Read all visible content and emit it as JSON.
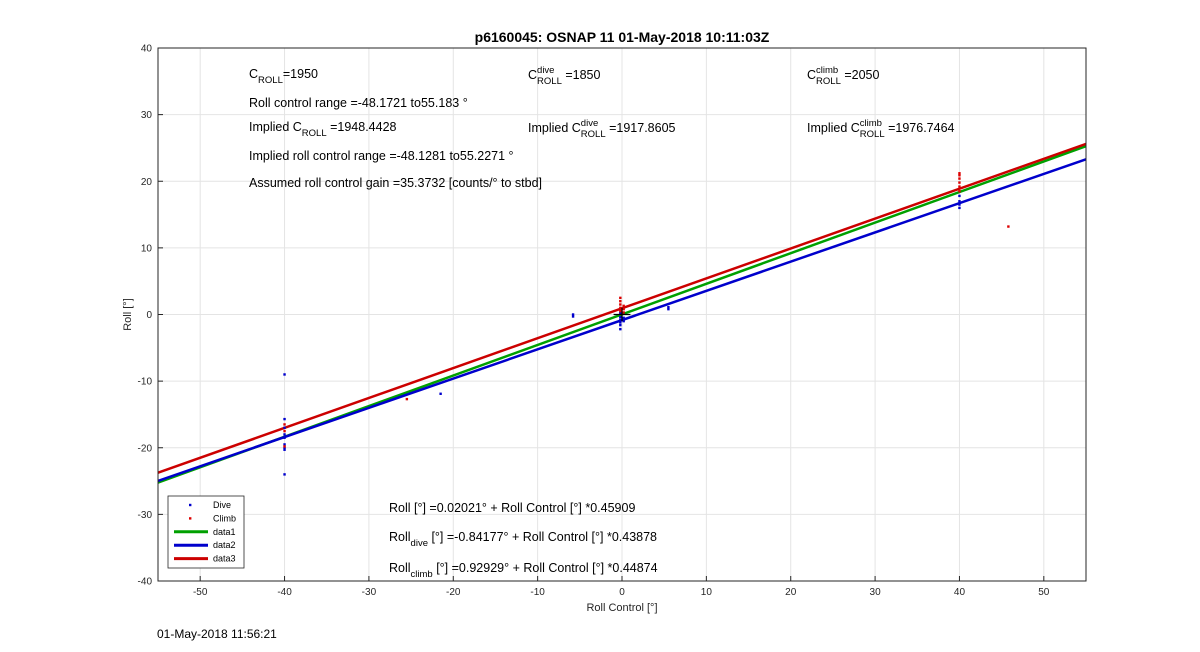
{
  "footer_timestamp": "01-May-2018 11:56:21",
  "chart_data": {
    "type": "scatter",
    "title": "p6160045: OSNAP 11 01-May-2018 10:11:03Z",
    "xlabel": "Roll Control [°]",
    "ylabel": "Roll [°]",
    "xlim": [
      -55,
      55
    ],
    "ylim": [
      -40,
      40
    ],
    "xticks": [
      -50,
      -40,
      -30,
      -20,
      -10,
      0,
      10,
      20,
      30,
      40,
      50
    ],
    "yticks": [
      -40,
      -30,
      -20,
      -10,
      0,
      10,
      20,
      30,
      40
    ],
    "grid": true,
    "legend_position": "bottom-left",
    "annotations": {
      "c_roll": {
        "base": "C",
        "sub": "ROLL",
        "value": "=1950"
      },
      "c_roll_dive": {
        "base": "C",
        "sub": "ROLL",
        "sup": "dive",
        "value": " =1850"
      },
      "c_roll_climb": {
        "base": "C",
        "sub": "ROLL",
        "sup": "climb",
        "value": " =2050"
      },
      "roll_range": "Roll control range =-48.1721 to55.183 °",
      "implied_c_roll": {
        "prefix": "Implied C",
        "sub": "ROLL",
        "value": " =1948.4428"
      },
      "implied_c_roll_dive": {
        "prefix": "Implied C",
        "sub": "ROLL",
        "sup": "dive",
        "value": " =1917.8605"
      },
      "implied_c_roll_climb": {
        "prefix": "Implied C",
        "sub": "ROLL",
        "sup": "climb",
        "value": " =1976.7464"
      },
      "implied_range": "Implied roll control range =-48.1281 to55.2271 °",
      "gain": "Assumed roll control gain =35.3732 [counts/° to stbd]",
      "eq_all": "Roll [°] =0.02021° + Roll Control [°] *0.45909",
      "eq_dive": {
        "base": "Roll",
        "sub": "dive",
        "rest": " [°] =-0.84177° + Roll Control [°] *0.43878"
      },
      "eq_climb": {
        "base": "Roll",
        "sub": "climb",
        "rest": " [°] =0.92929° + Roll Control [°] *0.44874"
      }
    },
    "series": [
      {
        "name": "Dive",
        "kind": "scatter",
        "color": "#0000cc",
        "points": [
          [
            -40,
            -9
          ],
          [
            -40,
            -15.7
          ],
          [
            -40,
            -17
          ],
          [
            -40,
            -18
          ],
          [
            -40,
            -18.5
          ],
          [
            -40,
            -19.5
          ],
          [
            -40,
            -20
          ],
          [
            -40,
            -20.3
          ],
          [
            -40,
            -24
          ],
          [
            -21.5,
            -11.9
          ],
          [
            -5.8,
            0
          ],
          [
            -5.8,
            -0.3
          ],
          [
            5.5,
            0.8
          ],
          [
            5.5,
            1.1
          ],
          [
            -0.2,
            -0.4
          ],
          [
            -0.2,
            -0.8
          ],
          [
            -0.2,
            -1.2
          ],
          [
            -0.2,
            -1.6
          ],
          [
            -0.2,
            -2.2
          ],
          [
            0.2,
            -0.5
          ],
          [
            0.2,
            -1
          ],
          [
            -0.2,
            0.2
          ],
          [
            40,
            16
          ],
          [
            40,
            16.5
          ],
          [
            40,
            17
          ],
          [
            40,
            17.8
          ]
        ]
      },
      {
        "name": "Climb",
        "kind": "scatter",
        "color": "#dd0000",
        "points": [
          [
            -40,
            -16.5
          ],
          [
            -40,
            -17.5
          ],
          [
            -40,
            -19.8
          ],
          [
            -25.5,
            -12.7
          ],
          [
            -0.2,
            0.5
          ],
          [
            -0.2,
            1
          ],
          [
            -0.2,
            1.5
          ],
          [
            -0.2,
            2
          ],
          [
            -0.2,
            2.5
          ],
          [
            0.2,
            0.8
          ],
          [
            0.2,
            1.3
          ],
          [
            0.2,
            0.3
          ],
          [
            40,
            18.5
          ],
          [
            40,
            19.2
          ],
          [
            40,
            19.8
          ],
          [
            40,
            20.4
          ],
          [
            40,
            20.9
          ],
          [
            40,
            21.2
          ],
          [
            45.8,
            13.2
          ]
        ]
      },
      {
        "name": "data1",
        "kind": "line",
        "color": "#00a000",
        "intercept": 0.02021,
        "slope": 0.45909
      },
      {
        "name": "data2",
        "kind": "line",
        "color": "#0000cc",
        "intercept": -0.84177,
        "slope": 0.43878
      },
      {
        "name": "data3",
        "kind": "line",
        "color": "#cc0000",
        "intercept": 0.92929,
        "slope": 0.44874
      }
    ]
  }
}
